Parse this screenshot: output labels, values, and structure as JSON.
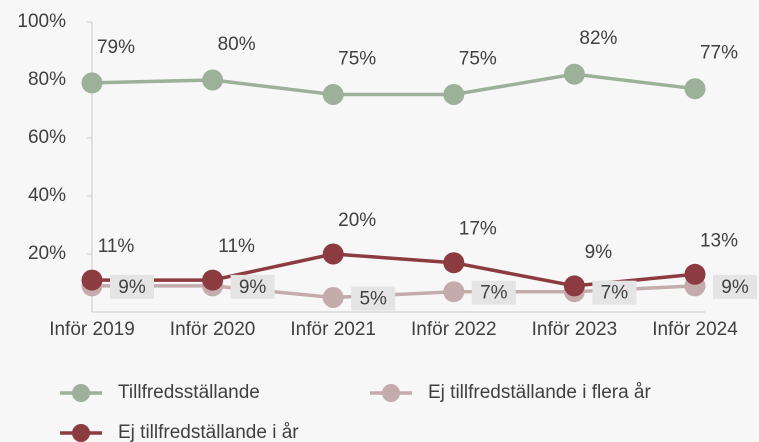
{
  "chart_data": {
    "type": "line",
    "categories": [
      "Inför 2019",
      "Inför 2020",
      "Inför 2021",
      "Inför 2022",
      "Inför 2023",
      "Inför 2024"
    ],
    "series": [
      {
        "name": "Tillfredsställande",
        "color": "#9cb09a",
        "values": [
          79,
          80,
          75,
          75,
          82,
          77
        ],
        "value_labels": [
          "79%",
          "80%",
          "75%",
          "75%",
          "82%",
          "77%"
        ]
      },
      {
        "name": "Ej tillfredställande i flera år",
        "color": "#c4acad",
        "values": [
          9,
          9,
          5,
          7,
          7,
          9
        ],
        "value_labels": [
          "9%",
          "9%",
          "5%",
          "7%",
          "7%",
          "9%"
        ]
      },
      {
        "name": "Ej tillfredställande i år",
        "color": "#8c3b41",
        "values": [
          11,
          11,
          20,
          17,
          9,
          13
        ],
        "value_labels": [
          "11%",
          "11%",
          "20%",
          "17%",
          "9%",
          "13%"
        ]
      }
    ],
    "ylim": [
      0,
      100
    ],
    "yticks": [
      {
        "value": 20,
        "label": "20%"
      },
      {
        "value": 40,
        "label": "40%"
      },
      {
        "value": 60,
        "label": "60%"
      },
      {
        "value": 80,
        "label": "80%"
      },
      {
        "value": 100,
        "label": "100%"
      }
    ]
  }
}
